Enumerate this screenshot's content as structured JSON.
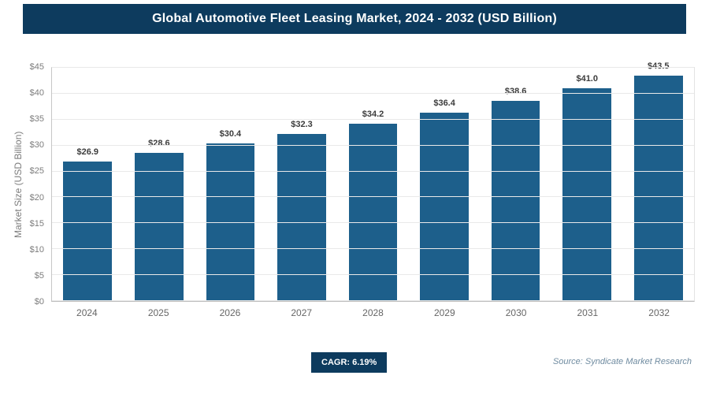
{
  "header": {
    "title": "Global Automotive Fleet Leasing Market, 2024 - 2032 (USD Billion)"
  },
  "chart_data": {
    "type": "bar",
    "title": "Global Automotive Fleet Leasing Market, 2024 - 2032 (USD Billion)",
    "categories": [
      "2024",
      "2025",
      "2026",
      "2027",
      "2028",
      "2029",
      "2030",
      "2031",
      "2032"
    ],
    "values": [
      26.9,
      28.6,
      30.4,
      32.3,
      34.2,
      36.4,
      38.6,
      41.0,
      43.5
    ],
    "value_labels": [
      "$26.9",
      "$28.6",
      "$30.4",
      "$32.3",
      "$34.2",
      "$36.4",
      "$38.6",
      "$41.0",
      "$43.5"
    ],
    "xlabel": "",
    "ylabel": "Market Size (USD Billion)",
    "ylim": [
      0,
      45
    ],
    "yticks": [
      0,
      5,
      10,
      15,
      20,
      25,
      30,
      35,
      40,
      45
    ],
    "ytick_labels": [
      "$0",
      "$5",
      "$10",
      "$15",
      "$20",
      "$25",
      "$30",
      "$35",
      "$40",
      "$45"
    ],
    "grid": true,
    "legend": false,
    "bar_color": "#1d5f8b"
  },
  "footer": {
    "cagr_label": "CAGR: 6.19%",
    "source": "Source: Syndicate Market Research"
  },
  "colors": {
    "header_bg": "#0d3b5e",
    "badge_bg": "#0d3b5e",
    "bar": "#1d5f8b",
    "grid": "#e9e9e9",
    "axis_text": "#7d7d7d"
  }
}
